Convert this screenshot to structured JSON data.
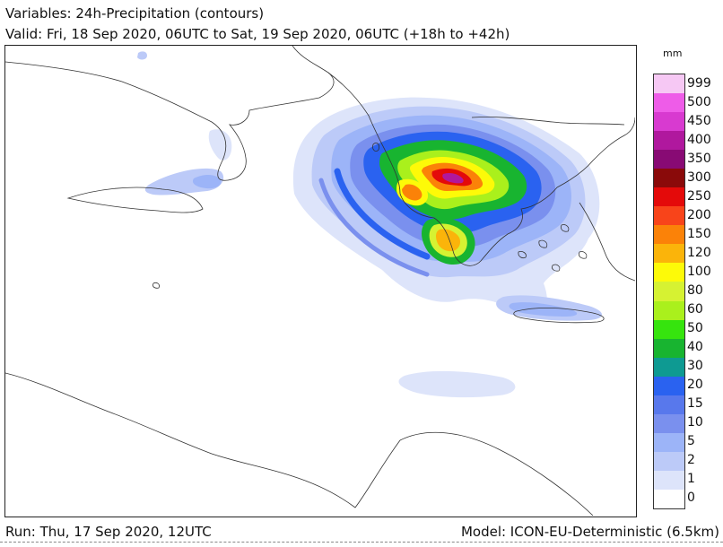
{
  "header": {
    "variables": "Variables: 24h-Precipitation (contours)",
    "valid": "Valid: Fri, 18 Sep 2020, 06UTC to Sat, 19 Sep 2020, 06UTC (+18h to +42h)"
  },
  "legend": {
    "unit": "mm",
    "levels": [
      {
        "label": "999",
        "color": "#f6c8f4"
      },
      {
        "label": "500",
        "color": "#ee5ce8"
      },
      {
        "label": "450",
        "color": "#d83ad0"
      },
      {
        "label": "400",
        "color": "#b0189e"
      },
      {
        "label": "350",
        "color": "#880a74"
      },
      {
        "label": "300",
        "color": "#8a0a0a"
      },
      {
        "label": "250",
        "color": "#e40a0a"
      },
      {
        "label": "200",
        "color": "#f8441a"
      },
      {
        "label": "150",
        "color": "#fb8208"
      },
      {
        "label": "120",
        "color": "#fbb40a"
      },
      {
        "label": "100",
        "color": "#fdfa08"
      },
      {
        "label": "80",
        "color": "#d6f232"
      },
      {
        "label": "60",
        "color": "#aaf01c"
      },
      {
        "label": "50",
        "color": "#36e40e"
      },
      {
        "label": "40",
        "color": "#18b430"
      },
      {
        "label": "30",
        "color": "#0e9a92"
      },
      {
        "label": "20",
        "color": "#2a62f0"
      },
      {
        "label": "15",
        "color": "#5878ec"
      },
      {
        "label": "10",
        "color": "#7a90ee"
      },
      {
        "label": "5",
        "color": "#9cb4f8"
      },
      {
        "label": "2",
        "color": "#bccaf8"
      },
      {
        "label": "1",
        "color": "#dde4fa"
      },
      {
        "label": "0",
        "color": "#ffffff"
      }
    ]
  },
  "footer": {
    "run": "Run: Thu, 17 Sep 2020, 12UTC",
    "model": "Model: ICON-EU-Deterministic (6.5km)"
  }
}
